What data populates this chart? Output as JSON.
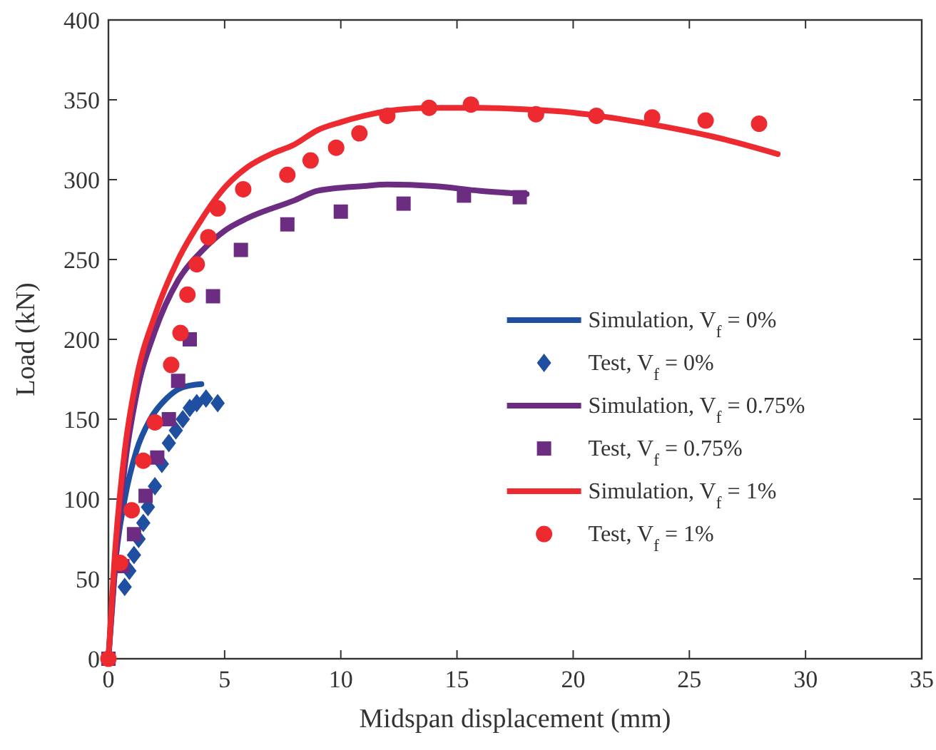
{
  "chart_data": {
    "type": "line",
    "xlabel": "Midspan displacement (mm)",
    "ylabel": "Load (kN)",
    "xlim": [
      0,
      35
    ],
    "ylim": [
      0,
      400
    ],
    "xticks": [
      0,
      5,
      10,
      15,
      20,
      25,
      30,
      35
    ],
    "yticks": [
      0,
      50,
      100,
      150,
      200,
      250,
      300,
      350,
      400
    ],
    "grid": false,
    "legend": "right",
    "series": [
      {
        "name": "Simulation, V$_{f}$ = 0%",
        "color": "#1f4fa0",
        "line_style": "solid",
        "x": [
          0,
          0.3,
          0.7,
          1.2,
          1.8,
          2.5,
          3.2,
          4
        ],
        "values": [
          0,
          60,
          100,
          130,
          150,
          163,
          170,
          172
        ]
      },
      {
        "name": "Test, V$_{f}$ = 0%",
        "type": "scatter",
        "marker": "diamond",
        "color": "#1f4fa0",
        "x": [
          0.7,
          0.9,
          1.1,
          1.3,
          1.5,
          1.7,
          2.0,
          2.3,
          2.6,
          2.9,
          3.2,
          3.5,
          3.8,
          4.2,
          4.7
        ],
        "values": [
          45,
          55,
          65,
          75,
          85,
          95,
          108,
          122,
          135,
          143,
          150,
          157,
          160,
          163,
          160
        ]
      },
      {
        "name": "Simulation, V$_{f}$ = 0.75%",
        "color": "#6b2c82",
        "line_style": "solid",
        "x": [
          0,
          0.3,
          0.7,
          1.2,
          2,
          3,
          4,
          5,
          6,
          8,
          9,
          11,
          12,
          14,
          16,
          18
        ],
        "values": [
          0,
          60,
          120,
          165,
          205,
          237,
          255,
          268,
          276,
          287,
          293,
          296,
          297,
          296,
          293,
          291
        ]
      },
      {
        "name": "Test, V$_{f}$ = 0.75%",
        "type": "scatter",
        "marker": "square",
        "color": "#6b2c82",
        "x": [
          0,
          0.6,
          1.1,
          1.6,
          2.1,
          2.6,
          3,
          3.5,
          4.5,
          5.7,
          7.7,
          10,
          12.7,
          15.3,
          17.7
        ],
        "values": [
          0,
          58,
          78,
          102,
          126,
          150,
          174,
          200,
          227,
          256,
          272,
          280,
          285,
          290,
          289
        ]
      },
      {
        "name": "Simulation, V$_{f}$ = 1%",
        "color": "#ec2a2f",
        "line_style": "solid",
        "x": [
          0,
          0.3,
          0.7,
          1.2,
          2,
          3,
          4,
          5,
          6,
          7,
          8,
          9,
          10,
          11,
          12,
          14,
          16,
          18,
          20,
          22,
          24,
          26,
          28.8
        ],
        "values": [
          0,
          70,
          130,
          175,
          215,
          250,
          275,
          295,
          308,
          316,
          322,
          331,
          336,
          340,
          343,
          345,
          345,
          344,
          342,
          338,
          333,
          327,
          316
        ]
      },
      {
        "name": "Test, V$_{f}$ = 1%",
        "type": "scatter",
        "marker": "circle",
        "color": "#ec2a2f",
        "x": [
          0,
          0.5,
          1,
          1.5,
          2,
          2.7,
          3.1,
          3.4,
          3.8,
          4.3,
          4.7,
          5.8,
          7.7,
          8.7,
          9.8,
          10.8,
          12,
          13.8,
          15.6,
          18.4,
          21,
          23.4,
          25.7,
          28
        ],
        "values": [
          0,
          60,
          93,
          124,
          148,
          184,
          204,
          228,
          247,
          264,
          282,
          294,
          303,
          312,
          320,
          329,
          340,
          345,
          347,
          341,
          340,
          339,
          337,
          335
        ]
      }
    ]
  }
}
